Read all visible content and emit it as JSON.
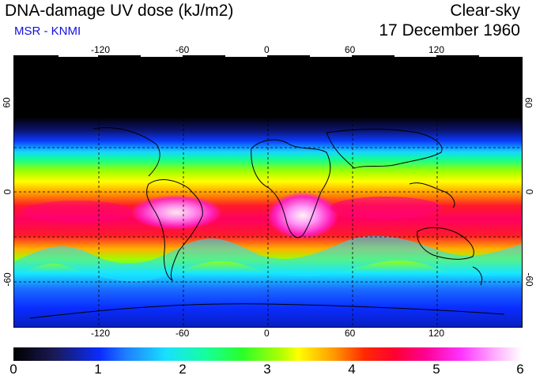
{
  "header": {
    "title": "DNA-damage UV dose (kJ/m2)",
    "subtitle": "MSR - KNMI",
    "sky": "Clear-sky",
    "date": "17 December 1960"
  },
  "map": {
    "lon_ticks": [
      "-120",
      "-60",
      "0",
      "60",
      "120"
    ],
    "lat_ticks": [
      "60",
      "0",
      "-60"
    ]
  },
  "colorbar": {
    "labels": [
      "0",
      "1",
      "2",
      "3",
      "4",
      "5",
      "6"
    ],
    "min": 0,
    "max": 6,
    "unit": "kJ/m2"
  }
}
